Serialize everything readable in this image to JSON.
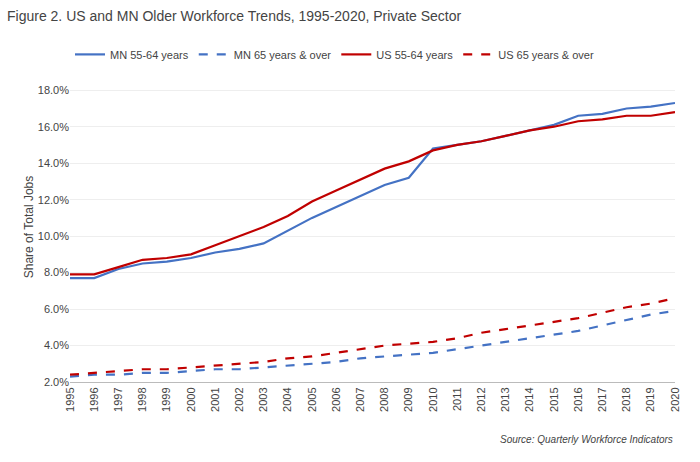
{
  "chart_data": {
    "type": "line",
    "title": "Figure 2. US and MN Older Workforce Trends, 1995-2020, Private Sector",
    "y_label": "Share of Total Jobs",
    "annotations": [
      "Source: Quarterly Workforce Indicators"
    ],
    "x": [
      1995,
      1996,
      1997,
      1998,
      1999,
      2000,
      2001,
      2002,
      2003,
      2004,
      2005,
      2006,
      2007,
      2008,
      2009,
      2010,
      2011,
      2012,
      2013,
      2014,
      2015,
      2016,
      2017,
      2018,
      2019,
      2020
    ],
    "series": [
      {
        "name": "MN 55-64 years",
        "color": "#4472C4",
        "line_style": "solid",
        "values": [
          0.077,
          0.077,
          0.082,
          0.085,
          0.086,
          0.088,
          0.091,
          0.093,
          0.096,
          0.103,
          0.11,
          0.116,
          0.122,
          0.128,
          0.132,
          0.148,
          0.15,
          0.152,
          0.155,
          0.158,
          0.161,
          0.166,
          0.167,
          0.17,
          0.171,
          0.173
        ]
      },
      {
        "name": "MN 65 years & over",
        "color": "#4472C4",
        "line_style": "dashed",
        "values": [
          0.023,
          0.024,
          0.024,
          0.025,
          0.025,
          0.026,
          0.027,
          0.027,
          0.028,
          0.029,
          0.03,
          0.031,
          0.033,
          0.034,
          0.035,
          0.036,
          0.038,
          0.04,
          0.042,
          0.044,
          0.046,
          0.048,
          0.051,
          0.054,
          0.057,
          0.059
        ]
      },
      {
        "name": "US 55-64 years",
        "color": "#C00000",
        "line_style": "solid",
        "values": [
          0.079,
          0.079,
          0.083,
          0.087,
          0.088,
          0.09,
          0.095,
          0.1,
          0.105,
          0.111,
          0.119,
          0.125,
          0.131,
          0.137,
          0.141,
          0.147,
          0.15,
          0.152,
          0.155,
          0.158,
          0.16,
          0.163,
          0.164,
          0.166,
          0.166,
          0.168
        ]
      },
      {
        "name": "US 65 years & over",
        "color": "#C00000",
        "line_style": "dashed",
        "values": [
          0.024,
          0.025,
          0.026,
          0.027,
          0.027,
          0.028,
          0.029,
          0.03,
          0.031,
          0.033,
          0.034,
          0.036,
          0.038,
          0.04,
          0.041,
          0.042,
          0.044,
          0.047,
          0.049,
          0.051,
          0.053,
          0.055,
          0.058,
          0.061,
          0.063,
          0.066
        ]
      }
    ],
    "xlim": [
      1995,
      2020
    ],
    "xticks": [
      1995,
      1996,
      1997,
      1998,
      1999,
      2000,
      2001,
      2002,
      2003,
      2004,
      2005,
      2006,
      2007,
      2008,
      2009,
      2010,
      2011,
      2012,
      2013,
      2014,
      2015,
      2016,
      2017,
      2018,
      2019,
      2020
    ],
    "ylim": [
      0.02,
      0.19
    ],
    "yticks": [
      {
        "value": 0.02,
        "label": "2.0%"
      },
      {
        "value": 0.04,
        "label": "4.0%"
      },
      {
        "value": 0.06,
        "label": "6.0%"
      },
      {
        "value": 0.08,
        "label": "8.0%"
      },
      {
        "value": 0.1,
        "label": "10.0%"
      },
      {
        "value": 0.12,
        "label": "12.0%"
      },
      {
        "value": 0.14,
        "label": "14.0%"
      },
      {
        "value": 0.16,
        "label": "16.0%"
      },
      {
        "value": 0.18,
        "label": "18.0%"
      }
    ],
    "grid": "y",
    "legend": "upper left"
  }
}
